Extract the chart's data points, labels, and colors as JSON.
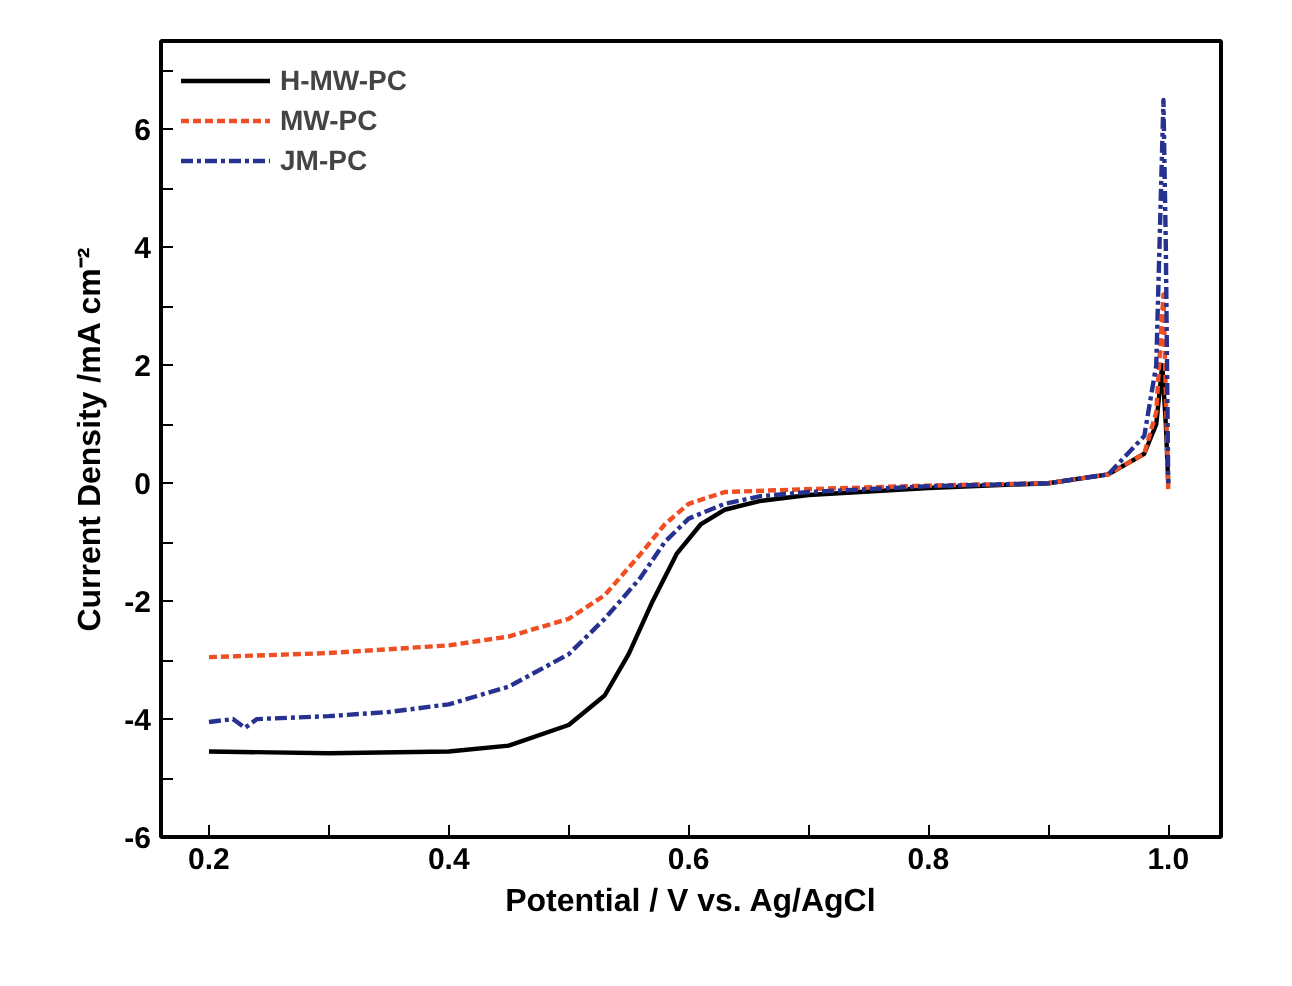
{
  "chart_data": {
    "type": "line",
    "xlabel": "Potential / V vs. Ag/AgCl",
    "ylabel": "Current Density /mA cm⁻²",
    "xlim": [
      0.16,
      1.044
    ],
    "ylim": [
      -6,
      7.5
    ],
    "xticks": [
      {
        "value": 0.2,
        "label": "0.2"
      },
      {
        "value": 0.3,
        "label": null
      },
      {
        "value": 0.4,
        "label": "0.4"
      },
      {
        "value": 0.5,
        "label": null
      },
      {
        "value": 0.6,
        "label": "0.6"
      },
      {
        "value": 0.7,
        "label": null
      },
      {
        "value": 0.8,
        "label": "0.8"
      },
      {
        "value": 0.9,
        "label": null
      },
      {
        "value": 1.0,
        "label": "1.0"
      }
    ],
    "yticks": [
      -6,
      {
        "value": -5,
        "label": null
      },
      -4,
      {
        "value": -3,
        "label": null
      },
      -2,
      {
        "value": -1,
        "label": null
      },
      0,
      {
        "value": 1,
        "label": null
      },
      2,
      {
        "value": 3,
        "label": null
      },
      4,
      {
        "value": 5,
        "label": null
      },
      6,
      {
        "value": 7,
        "label": null
      }
    ],
    "grid": false,
    "legend": "top left",
    "marker": "none",
    "series": [
      {
        "name": "H-MW-PC",
        "color": "#000000",
        "line_style": "solid",
        "x": [
          0.2,
          0.3,
          0.4,
          0.45,
          0.5,
          0.53,
          0.55,
          0.57,
          0.59,
          0.61,
          0.63,
          0.66,
          0.7,
          0.8,
          0.9,
          0.95,
          0.98,
          0.99,
          0.995,
          0.998,
          1.0
        ],
        "values": [
          -4.55,
          -4.58,
          -4.55,
          -4.45,
          -4.1,
          -3.6,
          -2.9,
          -2.0,
          -1.2,
          -0.7,
          -0.45,
          -0.3,
          -0.2,
          -0.08,
          0,
          0.15,
          0.5,
          1.0,
          2.0,
          1.0,
          0
        ]
      },
      {
        "name": "MW-PC",
        "color": "#f04e23",
        "line_style": "dashed",
        "x": [
          0.2,
          0.3,
          0.4,
          0.45,
          0.5,
          0.53,
          0.56,
          0.58,
          0.6,
          0.63,
          0.7,
          0.8,
          0.9,
          0.95,
          0.98,
          0.99,
          0.996,
          0.998,
          1.0
        ],
        "values": [
          -2.95,
          -2.88,
          -2.75,
          -2.6,
          -2.3,
          -1.9,
          -1.2,
          -0.7,
          -0.35,
          -0.15,
          -0.1,
          -0.04,
          0,
          0.15,
          0.5,
          1.2,
          3.2,
          1.5,
          -0.1
        ]
      },
      {
        "name": "JM-PC",
        "color": "#27318f",
        "line_style": "dashdot",
        "x": [
          0.2,
          0.22,
          0.23,
          0.24,
          0.3,
          0.35,
          0.4,
          0.45,
          0.5,
          0.53,
          0.56,
          0.58,
          0.6,
          0.63,
          0.66,
          0.7,
          0.8,
          0.9,
          0.95,
          0.98,
          0.99,
          0.996,
          0.998,
          1.0
        ],
        "values": [
          -4.05,
          -4.0,
          -4.15,
          -4.0,
          -3.95,
          -3.88,
          -3.75,
          -3.45,
          -2.9,
          -2.3,
          -1.6,
          -1.0,
          -0.6,
          -0.35,
          -0.22,
          -0.15,
          -0.05,
          0,
          0.15,
          0.8,
          2.0,
          6.5,
          4.0,
          0
        ]
      }
    ]
  }
}
